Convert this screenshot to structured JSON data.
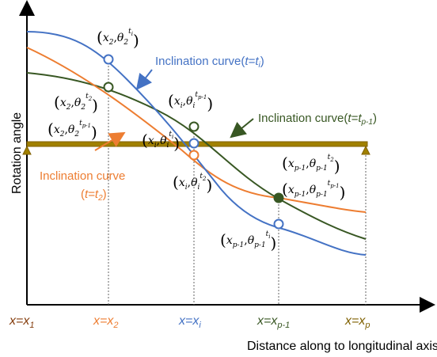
{
  "axis_title_x": "Distance along to longitudinal axis",
  "axis_title_y": "Rotation angle",
  "curves": {
    "blue": {
      "label": "Inclination curve(",
      "t_part": "t=t",
      "t_sub": "i",
      "suffix": ")",
      "color": "#4472c4"
    },
    "green": {
      "label": "Inclination curve(",
      "t_part": "t=t",
      "t_sub": "p-1",
      "suffix": ")",
      "color": "#385723"
    },
    "orange": {
      "label1": "Inclination curve",
      "label2_open": "(",
      "t_part": "t=t",
      "t_sub": "2",
      "suffix": ")",
      "color": "#ed7d31"
    }
  },
  "beam_color": "#806000",
  "x_labels": [
    {
      "lhs": "x=x",
      "sub": "1",
      "color": "#843c0c"
    },
    {
      "lhs": "x=x",
      "sub": "2",
      "color": "#ed7d31"
    },
    {
      "lhs": "x=x",
      "sub": "i",
      "color": "#4472c4"
    },
    {
      "lhs": "x=x",
      "sub": "p-1",
      "color": "#385723"
    },
    {
      "lhs": "x=x",
      "sub": "p",
      "color": "#7f6000"
    }
  ],
  "point_labels": [
    {
      "x": "x",
      "xs": "2",
      "th": "θ",
      "ths": "2",
      "sup": "t",
      "supsub": "i"
    },
    {
      "x": "x",
      "xs": "2",
      "th": "θ",
      "ths": "2",
      "sup": "t",
      "supsub": "2"
    },
    {
      "x": "x",
      "xs": "2",
      "th": "θ",
      "ths": "2",
      "sup": "t",
      "supsub": "p-1"
    },
    {
      "x": "x",
      "xs": "i",
      "th": "θ",
      "ths": "i",
      "sup": "t",
      "supsub": "p-1"
    },
    {
      "x": "x",
      "xs": "i",
      "th": "θ",
      "ths": "i",
      "sup": "t",
      "supsub": "i"
    },
    {
      "x": "x",
      "xs": "i",
      "th": "θ",
      "ths": "i",
      "sup": "t",
      "supsub": "2"
    },
    {
      "x": "x",
      "xs": "p-1",
      "th": "θ",
      "ths": "p-1",
      "sup": "t",
      "supsub": "2"
    },
    {
      "x": "x",
      "xs": "p-1",
      "th": "θ",
      "ths": "p-1",
      "sup": "t",
      "supsub": "p-1"
    },
    {
      "x": "x",
      "xs": "p-1",
      "th": "θ",
      "ths": "p-1",
      "sup": "t",
      "supsub": "i"
    }
  ]
}
